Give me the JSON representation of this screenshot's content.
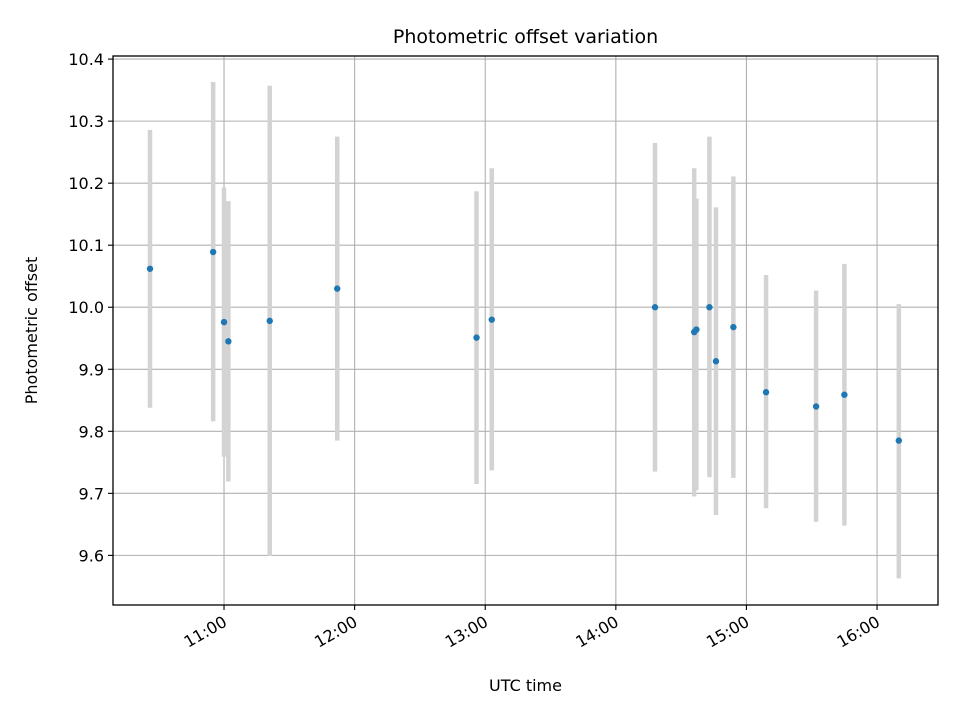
{
  "chart_data": {
    "type": "scatter",
    "title": "Photometric offset variation",
    "xlabel": "UTC time",
    "ylabel": "Photometric offset",
    "x_ticks": [
      "11:00",
      "12:00",
      "13:00",
      "14:00",
      "15:00",
      "16:00"
    ],
    "xlim": [
      "10:09",
      "16:28"
    ],
    "ylim": [
      9.52,
      10.405
    ],
    "y_ticks": [
      9.6,
      9.7,
      9.8,
      9.9,
      10.0,
      10.1,
      10.2,
      10.3,
      10.4
    ],
    "grid": true,
    "colors": {
      "point": "#1f77b4",
      "errorbar": "#d3d3d3",
      "grid": "#b0b0b0"
    },
    "points": [
      {
        "x": "10:26",
        "y": 10.062,
        "ymin": 9.838,
        "ymax": 10.286
      },
      {
        "x": "10:55",
        "y": 10.089,
        "ymin": 9.816,
        "ymax": 10.363
      },
      {
        "x": "11:00",
        "y": 9.976,
        "ymin": 9.759,
        "ymax": 10.193
      },
      {
        "x": "11:02",
        "y": 9.945,
        "ymin": 9.719,
        "ymax": 10.171
      },
      {
        "x": "11:21",
        "y": 9.978,
        "ymin": 9.599,
        "ymax": 10.357
      },
      {
        "x": "11:52",
        "y": 10.03,
        "ymin": 9.785,
        "ymax": 10.275
      },
      {
        "x": "12:56",
        "y": 9.951,
        "ymin": 9.715,
        "ymax": 10.187
      },
      {
        "x": "13:03",
        "y": 9.98,
        "ymin": 9.737,
        "ymax": 10.224
      },
      {
        "x": "14:18",
        "y": 10.0,
        "ymin": 9.735,
        "ymax": 10.265
      },
      {
        "x": "14:36",
        "y": 9.96,
        "ymin": 9.695,
        "ymax": 10.224
      },
      {
        "x": "14:37",
        "y": 9.964,
        "ymin": 9.705,
        "ymax": 10.175
      },
      {
        "x": "14:43",
        "y": 10.0,
        "ymin": 9.726,
        "ymax": 10.275
      },
      {
        "x": "14:46",
        "y": 9.913,
        "ymin": 9.665,
        "ymax": 10.161
      },
      {
        "x": "14:54",
        "y": 9.968,
        "ymin": 9.725,
        "ymax": 10.211
      },
      {
        "x": "15:09",
        "y": 9.863,
        "ymin": 9.676,
        "ymax": 10.052
      },
      {
        "x": "15:32",
        "y": 9.84,
        "ymin": 9.654,
        "ymax": 10.027
      },
      {
        "x": "15:45",
        "y": 9.859,
        "ymin": 9.648,
        "ymax": 10.07
      },
      {
        "x": "16:10",
        "y": 9.785,
        "ymin": 9.563,
        "ymax": 10.005
      }
    ]
  }
}
